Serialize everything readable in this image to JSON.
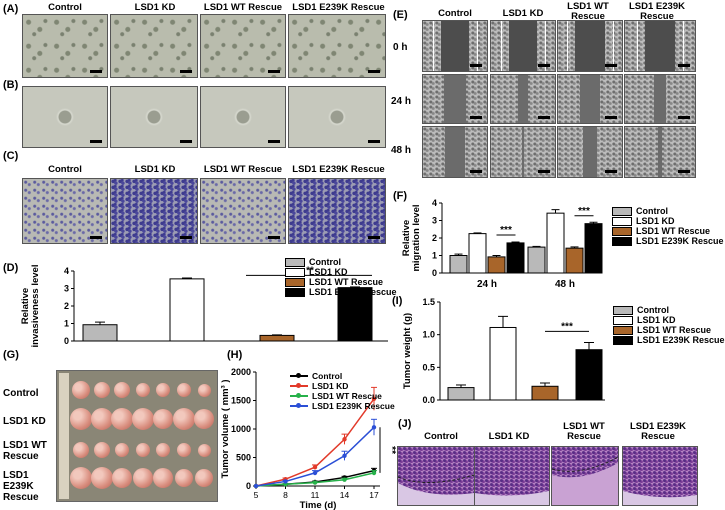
{
  "panels": {
    "A": {
      "label": "(A)",
      "columns": [
        "Control",
        "LSD1 KD",
        "LSD1 WT Rescue",
        "LSD1 E239K Rescue"
      ]
    },
    "B": {
      "label": "(B)"
    },
    "C": {
      "label": "(C)",
      "columns": [
        "Control",
        "LSD1 KD",
        "LSD1 WT Rescue",
        "LSD1 E239K Rescue"
      ]
    },
    "D": {
      "label": "(D)"
    },
    "E": {
      "label": "(E)",
      "columns": [
        "Control",
        "LSD1 KD",
        "LSD1 WT Rescue",
        "LSD1 E239K Rescue"
      ],
      "rows": [
        "0 h",
        "24 h",
        "48 h"
      ]
    },
    "F": {
      "label": "(F)"
    },
    "G": {
      "label": "(G)",
      "rows": [
        "Control",
        "LSD1 KD",
        "LSD1 WT Rescue",
        "LSD1 E239K Rescue"
      ]
    },
    "H": {
      "label": "(H)"
    },
    "I": {
      "label": "(I)"
    },
    "J": {
      "label": "(J)",
      "columns": [
        "Control",
        "LSD1 KD",
        "LSD1 WT Rescue",
        "LSD1 E239K Rescue"
      ]
    }
  },
  "colors": {
    "Control": "#b9b9b9",
    "LSD1 KD": "#ffffff",
    "LSD1 WT Rescue": "#a8652a",
    "LSD1 E239K Rescue": "#000000",
    "line_control": "#000000",
    "line_kd": "#e23a2a",
    "line_wt": "#27b14a",
    "line_e239k": "#2b4fd6"
  },
  "chart_data": [
    {
      "id": "D",
      "type": "bar",
      "ylabel": "Relative invasiveness level",
      "ylim": [
        0,
        4
      ],
      "yticks": [
        "0",
        "1",
        "2",
        "3",
        "4"
      ],
      "categories": [
        "Control",
        "LSD1 KD",
        "LSD1 WT Rescue",
        "LSD1 E239K Rescue"
      ],
      "values": [
        0.93,
        3.55,
        0.32,
        3.05
      ],
      "errors": [
        0.15,
        0.05,
        0.03,
        0.04
      ],
      "legend": [
        "Control",
        "LSD1 KD",
        "LSD1 WT Rescue",
        "LSD1 E239K Rescue"
      ],
      "significance": "**"
    },
    {
      "id": "F",
      "type": "bar",
      "ylabel": "Relative migration level",
      "ylim": [
        0,
        4
      ],
      "yticks": [
        "0",
        "1",
        "2",
        "3",
        "4"
      ],
      "categories": [
        "24 h",
        "48 h"
      ],
      "series": [
        {
          "name": "Control",
          "values": [
            1.0,
            1.48
          ],
          "errors": [
            0.08,
            0.04
          ]
        },
        {
          "name": "LSD1 KD",
          "values": [
            2.25,
            3.42
          ],
          "errors": [
            0.04,
            0.2
          ]
        },
        {
          "name": "LSD1 WT Rescue",
          "values": [
            0.92,
            1.42
          ],
          "errors": [
            0.08,
            0.07
          ]
        },
        {
          "name": "LSD1 E239K Rescue",
          "values": [
            1.72,
            2.82
          ],
          "errors": [
            0.05,
            0.08
          ]
        }
      ],
      "legend": [
        "Control",
        "LSD1 KD",
        "LSD1 WT Rescue",
        "LSD1 E239K Rescue"
      ],
      "significance": [
        "***",
        "***"
      ]
    },
    {
      "id": "H",
      "type": "line",
      "xlabel": "Time (d)",
      "ylabel": "Tumor volume ( mm³ )",
      "x": [
        5,
        8,
        11,
        14,
        17
      ],
      "xticks": [
        "5",
        "8",
        "11",
        "14",
        "17"
      ],
      "xlim": [
        5,
        17
      ],
      "ylim": [
        0,
        2000
      ],
      "yticks": [
        "0",
        "500",
        "1000",
        "1500",
        "2000"
      ],
      "series": [
        {
          "name": "Control",
          "values": [
            0,
            30,
            70,
            150,
            270
          ],
          "errors": [
            0,
            10,
            15,
            20,
            40
          ]
        },
        {
          "name": "LSD1 KD",
          "values": [
            0,
            120,
            330,
            820,
            1530
          ],
          "errors": [
            0,
            20,
            40,
            90,
            200
          ]
        },
        {
          "name": "LSD1 WT Rescue",
          "values": [
            0,
            30,
            60,
            110,
            230
          ],
          "errors": [
            0,
            10,
            15,
            25,
            40
          ]
        },
        {
          "name": "LSD1 E239K Rescue",
          "values": [
            0,
            80,
            230,
            530,
            1030
          ],
          "errors": [
            0,
            15,
            40,
            80,
            140
          ]
        }
      ],
      "significance": "**"
    },
    {
      "id": "I",
      "type": "bar",
      "ylabel": "Tumor weight (g)",
      "ylim": [
        0,
        1.5
      ],
      "yticks": [
        "0.0",
        "0.5",
        "1.0",
        "1.5"
      ],
      "categories": [
        "Control",
        "LSD1 KD",
        "LSD1 WT Rescue",
        "LSD1 E239K Rescue"
      ],
      "values": [
        0.19,
        1.11,
        0.21,
        0.77
      ],
      "errors": [
        0.04,
        0.17,
        0.05,
        0.11
      ],
      "legend": [
        "Control",
        "LSD1 KD",
        "LSD1 WT Rescue",
        "LSD1 E239K Rescue"
      ],
      "significance": "***"
    }
  ]
}
